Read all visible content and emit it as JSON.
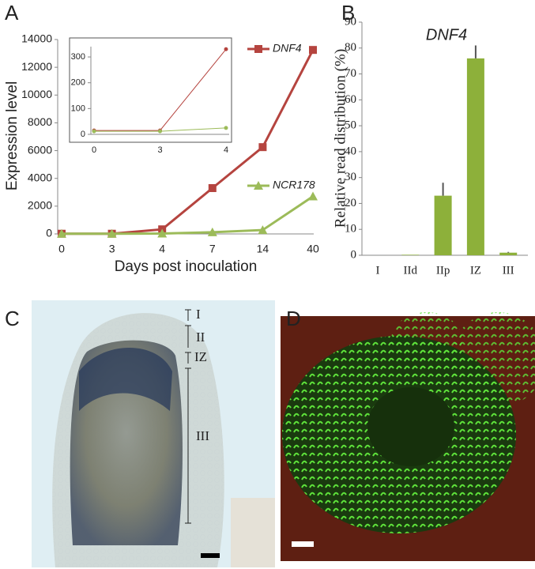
{
  "chart_data": [
    {
      "type": "line",
      "panel": "A",
      "ylabel": "Expression level",
      "xlabel": "Days post inoculation",
      "categories": [
        "0",
        "3",
        "4",
        "7",
        "14",
        "40"
      ],
      "series": [
        {
          "name": "DNF4",
          "color": "#b5443f",
          "marker": "square",
          "values": [
            15,
            15,
            330,
            3300,
            6250,
            13250
          ]
        },
        {
          "name": "NCR178",
          "color": "#9cbb59",
          "marker": "triangle",
          "values": [
            12,
            12,
            25,
            120,
            280,
            2700
          ]
        }
      ],
      "ylim": [
        0,
        14000
      ],
      "yticks": [
        0,
        2000,
        4000,
        6000,
        8000,
        10000,
        12000,
        14000
      ],
      "grid": false
    },
    {
      "type": "line",
      "categories": [
        "0",
        "3",
        "4"
      ],
      "series": [
        {
          "color": "#b5443f",
          "marker": "dot",
          "values": [
            15,
            15,
            330
          ]
        },
        {
          "color": "#9cbb59",
          "marker": "dot",
          "values": [
            12,
            12,
            25
          ]
        }
      ],
      "ylim": [
        0,
        340
      ],
      "yticks": [
        0,
        100,
        200,
        300
      ],
      "grid": false
    },
    {
      "type": "bar",
      "panel": "B",
      "title": "DNF4",
      "ylabel": "Relative read distribution (%)",
      "categories": [
        "I",
        "IId",
        "IIp",
        "IZ",
        "III"
      ],
      "values": [
        0,
        0.2,
        23,
        76,
        1
      ],
      "errors": [
        0,
        0,
        5,
        5,
        0.3
      ],
      "color": "#8db03a",
      "ylim": [
        0,
        90
      ],
      "yticks": [
        0,
        10,
        20,
        30,
        40,
        50,
        60,
        70,
        80,
        90
      ],
      "grid": false
    }
  ],
  "images": [
    {
      "panel": "C",
      "zones": [
        "I",
        "II",
        "IZ",
        "III"
      ]
    },
    {
      "panel": "D"
    }
  ]
}
